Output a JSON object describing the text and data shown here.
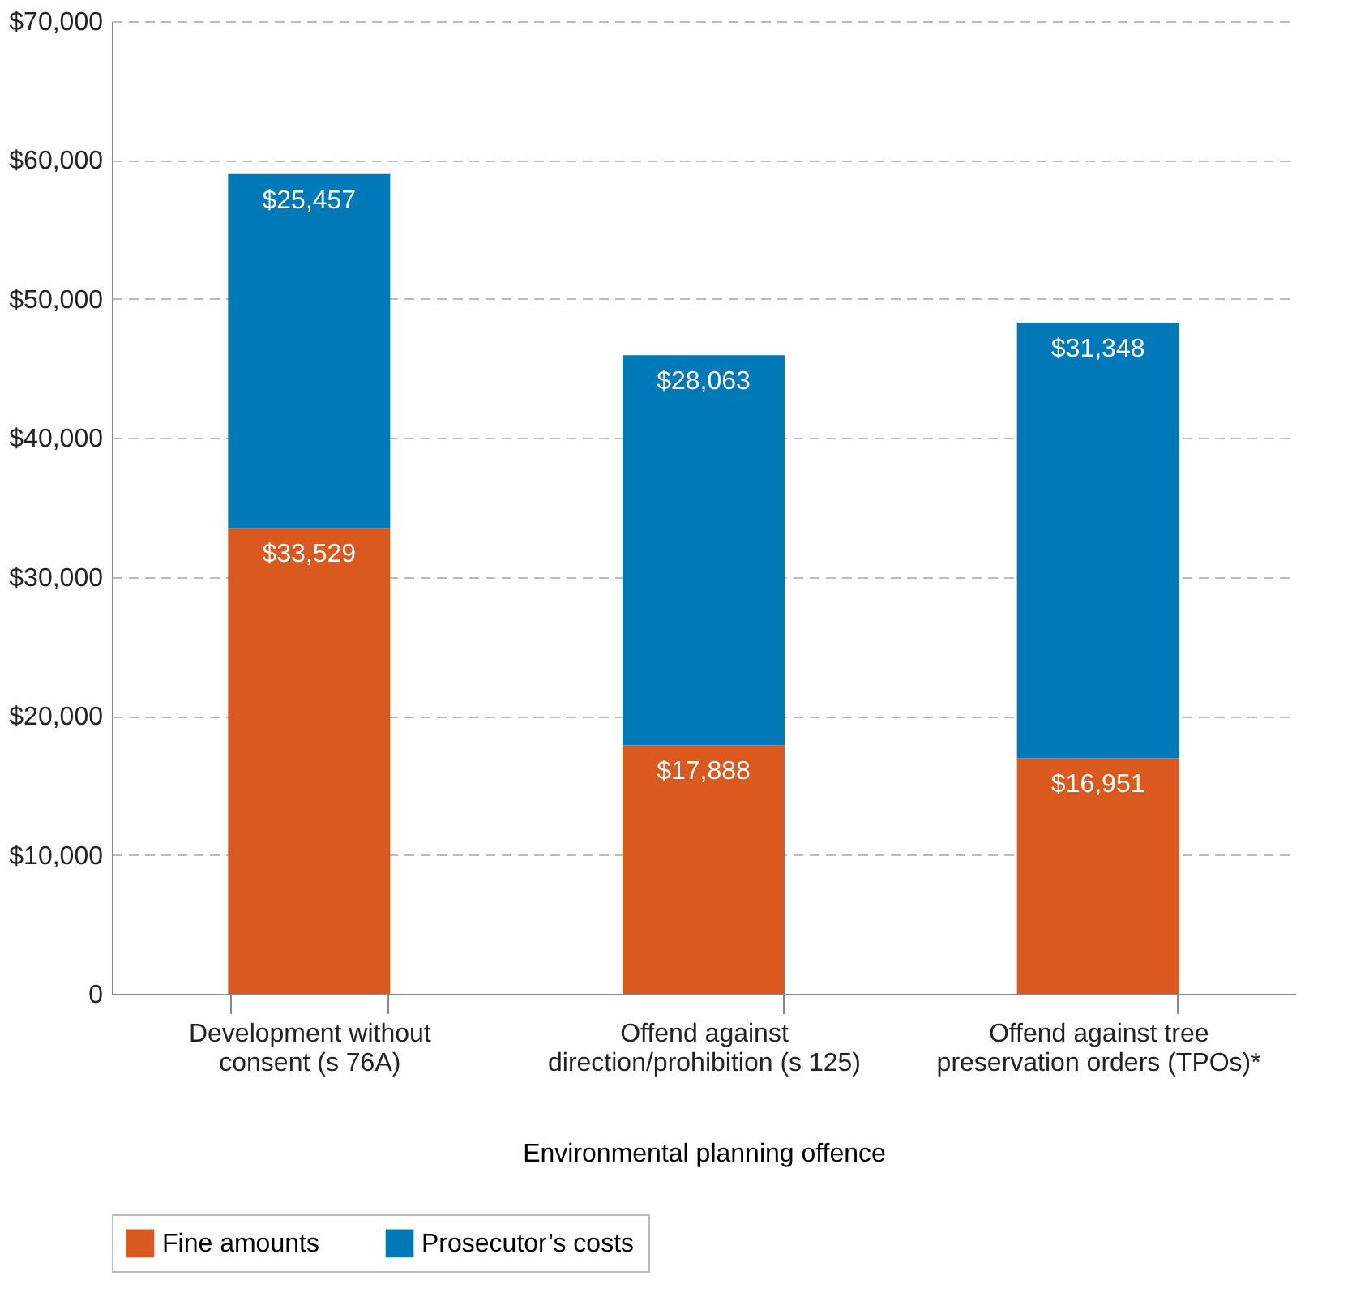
{
  "chart_data": {
    "type": "bar",
    "stacked": true,
    "xlabel": "Environmental planning offence",
    "categories": [
      "Development without\nconsent (s 76A)",
      "Offend against\ndirection/prohibition (s 125)",
      "Offend against tree\npreservation orders (TPOs)*"
    ],
    "series": [
      {
        "name": "Fine amounts",
        "color": "#d9591e",
        "values": [
          33529,
          17888,
          16951
        ],
        "value_labels": [
          "$33,529",
          "$17,888",
          "$16,951"
        ]
      },
      {
        "name": "Prosecutor’s costs",
        "color": "#0079b8",
        "values": [
          25457,
          28063,
          31348
        ],
        "value_labels": [
          "$25,457",
          "$28,063",
          "$31,348"
        ]
      }
    ],
    "ylim": [
      0,
      70000
    ],
    "yticks": [
      0,
      {
        "value": 10000,
        "label": "$10,000"
      },
      {
        "value": 20000,
        "label": "$20,000"
      },
      {
        "value": 30000,
        "label": "$30,000"
      },
      {
        "value": 40000,
        "label": "$40,000"
      },
      {
        "value": 50000,
        "label": "$50,000"
      },
      {
        "value": 60000,
        "label": "$60,000"
      },
      {
        "value": 70000,
        "label": "$70,000"
      }
    ],
    "grid": "y",
    "legend": "bottom"
  }
}
